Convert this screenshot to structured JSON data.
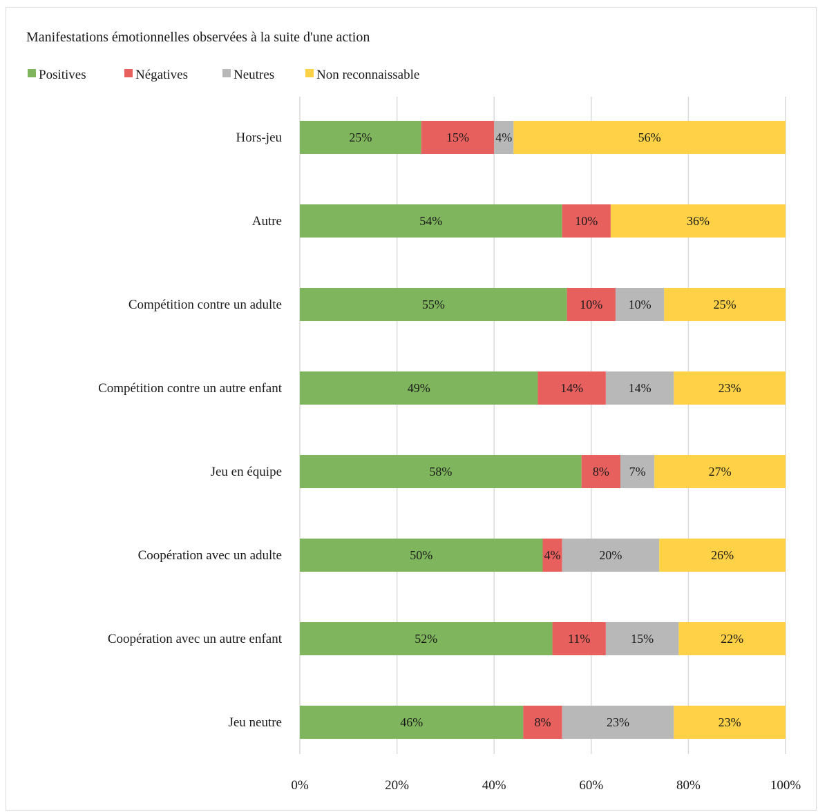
{
  "chart_data": {
    "type": "bar",
    "orientation": "horizontal",
    "stacked": "percent",
    "title": "Manifestations émotionnelles observées à la suite d'une action",
    "xlabel": "",
    "ylabel": "",
    "xlim": [
      0,
      100
    ],
    "x_ticks": [
      "0%",
      "20%",
      "40%",
      "60%",
      "80%",
      "100%"
    ],
    "grid": "vertical",
    "legend_position": "top-left",
    "categories": [
      "Hors-jeu",
      "Autre",
      "Compétition contre un adulte",
      "Compétition contre un autre enfant",
      "Jeu en équipe",
      "Coopération avec un adulte",
      "Coopération avec un autre enfant",
      "Jeu neutre"
    ],
    "series": [
      {
        "name": "Positives",
        "color": "#7fb55c",
        "values": [
          25,
          54,
          55,
          49,
          58,
          50,
          52,
          46
        ],
        "labels": [
          "25%",
          "54%",
          "55%",
          "49%",
          "58%",
          "50%",
          "52%",
          "46%"
        ]
      },
      {
        "name": "Négatives",
        "color": "#e8605e",
        "values": [
          15,
          10,
          10,
          14,
          8,
          4,
          11,
          8
        ],
        "labels": [
          "15%",
          "10%",
          "10%",
          "14%",
          "8%",
          "4%",
          "11%",
          "8%"
        ]
      },
      {
        "name": "Neutres",
        "color": "#b8b8b8",
        "values": [
          4,
          0,
          10,
          14,
          7,
          20,
          15,
          23
        ],
        "labels": [
          "4%",
          "",
          "10%",
          "14%",
          "7%",
          "20%",
          "15%",
          "23%"
        ]
      },
      {
        "name": "Non reconnaissable",
        "color": "#ffd146",
        "values": [
          56,
          36,
          25,
          23,
          27,
          26,
          22,
          23
        ],
        "labels": [
          "56%",
          "36%",
          "25%",
          "23%",
          "27%",
          "26%",
          "22%",
          "23%"
        ]
      }
    ]
  }
}
